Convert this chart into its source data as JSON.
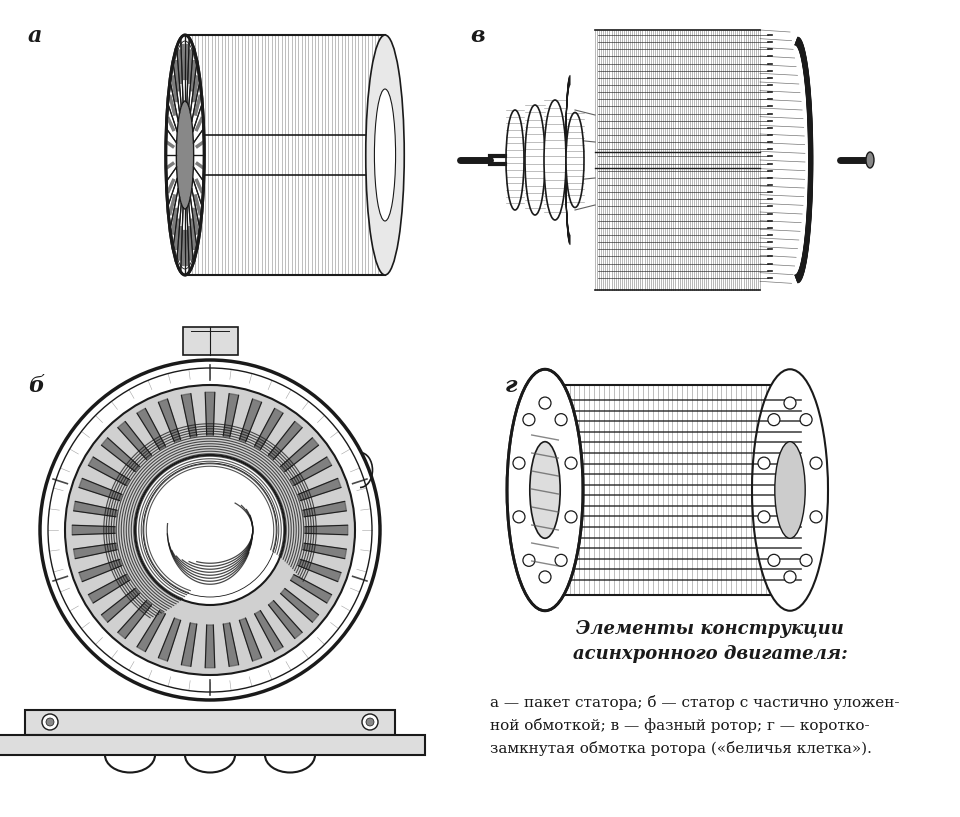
{
  "background_color": "#ffffff",
  "figure_width": 9.6,
  "figure_height": 8.17,
  "dpi": 100,
  "labels": {
    "a": "а",
    "b": "б",
    "v": "в",
    "g": "г"
  },
  "title_text": "Элементы конструкции\nасинхронного двигателя:",
  "caption_line1": "а — пакет статора; б — статор с частично уложен-",
  "caption_line2": "ной обмоткой; в — фазный ротор; г — коротко-",
  "caption_line3": "замкнутая обмотка ротора («беличья клетка»).",
  "label_fontsize": 16,
  "title_fontsize": 13,
  "caption_fontsize": 11
}
